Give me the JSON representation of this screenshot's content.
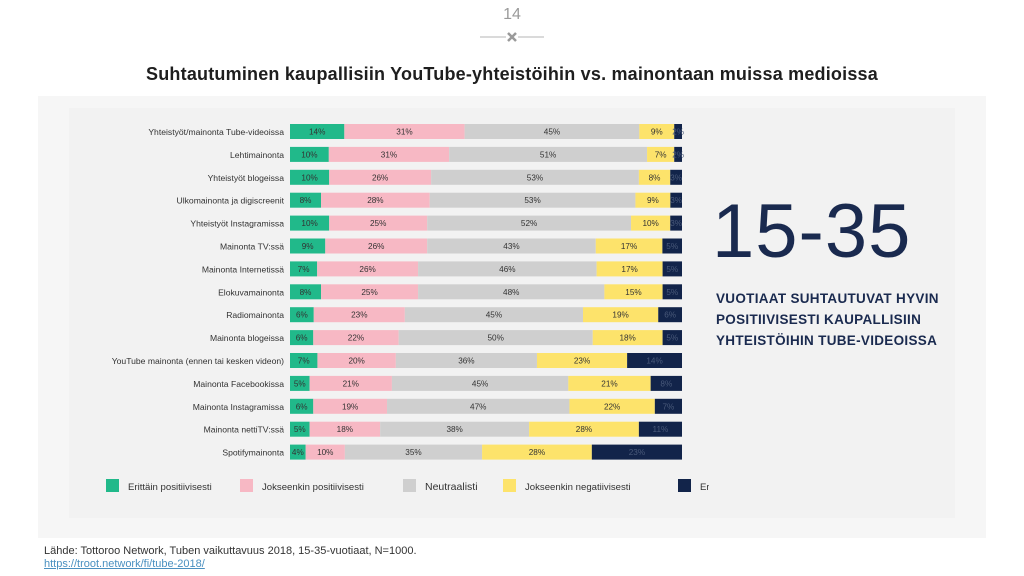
{
  "page_number": "14",
  "title": "Suhtautuminen kaupallisiin YouTube-yhteistöihin vs. mainontaan muissa medioissa",
  "big_number": "15-35",
  "callout_lines": [
    "VUOTIAAT SUHTAUTUVAT HYVIN",
    "POSITIIVISESTI KAUPALLISIIN",
    "YHTEISTÖIHIN TUBE-VIDEOISSA"
  ],
  "source": "Lähde: Tottoroo Network, Tuben vaikuttavuus 2018, 15-35-vuotiaat, N=1000.",
  "source_link": "https://troot.network/fi/tube-2018/",
  "colors": {
    "very_positive": "#21b98a",
    "positive": "#f7b8c4",
    "neutral": "#cfcfcf",
    "negative": "#fde36b",
    "very_negative": "#12244a"
  },
  "chart_data": {
    "type": "bar",
    "orientation": "horizontal",
    "stacked": true,
    "categories": [
      "Yhteistyöt/mainonta Tube-videoissa",
      "Lehtimainonta",
      "Yhteistyöt blogeissa",
      "Ulkomainonta ja digiscreenit",
      "Yhteistyöt Instagramissa",
      "Mainonta TV:ssä",
      "Mainonta Internetissä",
      "Elokuvamainonta",
      "Radiomainonta",
      "Mainonta blogeissa",
      "YouTube mainonta (ennen tai kesken videon)",
      "Mainonta Facebookissa",
      "Mainonta Instagramissa",
      "Mainonta nettiTV:ssä",
      "Spotifymainonta"
    ],
    "series": [
      {
        "name": "Erittäin positiivisesti",
        "key": "very_positive",
        "values": [
          14,
          10,
          10,
          8,
          10,
          9,
          7,
          8,
          6,
          6,
          7,
          5,
          6,
          5,
          4
        ]
      },
      {
        "name": "Jokseenkin positiivisesti",
        "key": "positive",
        "values": [
          31,
          31,
          26,
          28,
          25,
          26,
          26,
          25,
          23,
          22,
          20,
          21,
          19,
          18,
          10
        ]
      },
      {
        "name": "Neutraalisti",
        "key": "neutral",
        "values": [
          45,
          51,
          53,
          53,
          52,
          43,
          46,
          48,
          45,
          50,
          36,
          45,
          47,
          38,
          35
        ]
      },
      {
        "name": "Jokseenkin negatiivisesti",
        "key": "negative",
        "values": [
          9,
          7,
          8,
          9,
          10,
          17,
          17,
          15,
          19,
          18,
          23,
          21,
          22,
          28,
          28
        ]
      },
      {
        "name": "Erittäin negatiivisesti",
        "key": "very_negative",
        "values": [
          2,
          2,
          3,
          3,
          3,
          5,
          5,
          5,
          6,
          5,
          14,
          8,
          7,
          11,
          23
        ]
      }
    ],
    "labels": [
      [
        "14%",
        "31%",
        "45%",
        "9%",
        "2%"
      ],
      [
        "10%",
        "31%",
        "51%",
        "7%",
        "2%"
      ],
      [
        "10%",
        "26%",
        "53%",
        "8%",
        "3%"
      ],
      [
        "8%",
        "28%",
        "53%",
        "9%",
        "3%"
      ],
      [
        "10%",
        "25%",
        "52%",
        "10%",
        "3%"
      ],
      [
        "9%",
        "26%",
        "43%",
        "17%",
        "5%"
      ],
      [
        "7%",
        "26%",
        "46%",
        "17%",
        "5%"
      ],
      [
        "8%",
        "25%",
        "48%",
        "15%",
        "5%"
      ],
      [
        "6%",
        "23%",
        "45%",
        "19%",
        "6%"
      ],
      [
        "6%",
        "22%",
        "50%",
        "18%",
        "5%"
      ],
      [
        "7%",
        "20%",
        "36%",
        "23%",
        "14%"
      ],
      [
        "5%",
        "21%",
        "45%",
        "21%",
        "8%"
      ],
      [
        "6%",
        "19%",
        "47%",
        "22%",
        "7%"
      ],
      [
        "5%",
        "18%",
        "38%",
        "28%",
        "11%"
      ],
      [
        "4%",
        "10%",
        "35%",
        "28%",
        "23%"
      ]
    ],
    "legend_position": "bottom",
    "xlim": [
      0,
      100
    ]
  }
}
